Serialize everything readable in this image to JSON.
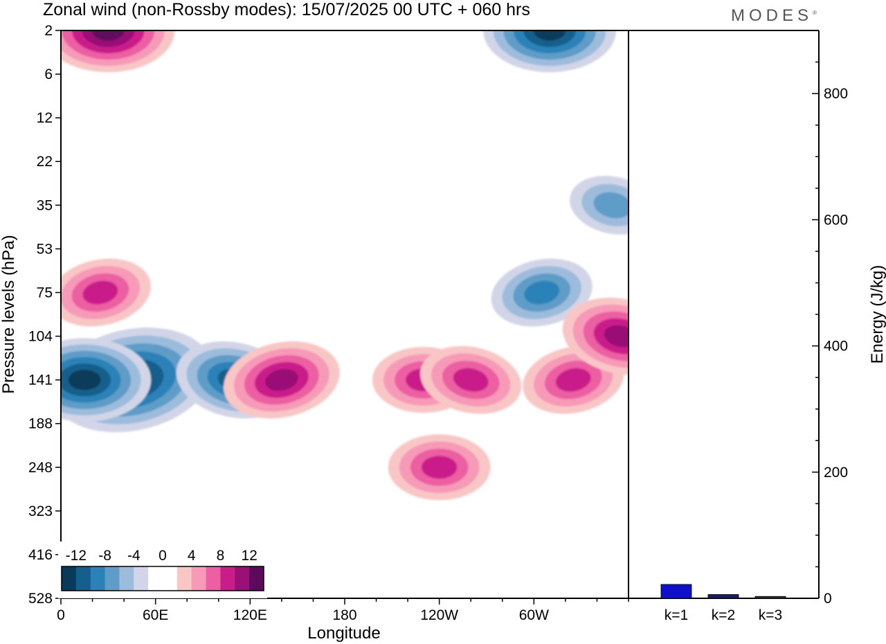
{
  "header": {
    "title": "Zonal wind (non-Rossby modes):  15/07/2025  00 UTC  + 060 hrs",
    "brand": "MODES"
  },
  "chart_data": [
    {
      "type": "heatmap",
      "title": "Zonal wind (non-Rossby modes):  15/07/2025  00 UTC  + 060 hrs",
      "xlabel": "Longitude",
      "ylabel": "Pressure levels (hPa)",
      "x_ticks": [
        "0",
        "60E",
        "120E",
        "180",
        "120W",
        "60W"
      ],
      "x_tick_values": [
        0,
        60,
        120,
        180,
        240,
        300
      ],
      "xlim": [
        0,
        360
      ],
      "y_ticks": [
        "2",
        "6",
        "12",
        "22",
        "35",
        "53",
        "75",
        "104",
        "141",
        "188",
        "248",
        "323",
        "416",
        "528"
      ],
      "y_scale": "model levels (top to bottom)",
      "colorbar": {
        "labels": [
          "-12",
          "-8",
          "-4",
          "0",
          "4",
          "8",
          "12"
        ],
        "colors": [
          "#0a3a5a",
          "#155f8c",
          "#2a82b8",
          "#5f9cc8",
          "#9dbcdc",
          "#d2d5e8",
          "#ffffff",
          "#ffffff",
          "#f9c6c6",
          "#f79ab8",
          "#ec5fa2",
          "#c91e8a",
          "#9a1077",
          "#5e0a5c"
        ],
        "placement": "bottom-left inside plot"
      },
      "features": [
        {
          "lon": 45,
          "level": "141",
          "value": -16,
          "sign": "negative"
        },
        {
          "lon": 15,
          "level": "141",
          "value": -12,
          "sign": "negative"
        },
        {
          "lon": 110,
          "level": "141",
          "value": -10,
          "sign": "negative"
        },
        {
          "lon": 305,
          "level": "75",
          "value": -8,
          "sign": "negative"
        },
        {
          "lon": 310,
          "level": "2",
          "value": -12,
          "sign": "negative"
        },
        {
          "lon": 350,
          "level": "35",
          "value": -6,
          "sign": "negative"
        },
        {
          "lon": 140,
          "level": "141",
          "value": 10,
          "sign": "positive"
        },
        {
          "lon": 230,
          "level": "141",
          "value": 8,
          "sign": "positive"
        },
        {
          "lon": 260,
          "level": "141",
          "value": 8,
          "sign": "positive"
        },
        {
          "lon": 325,
          "level": "141",
          "value": 8,
          "sign": "positive"
        },
        {
          "lon": 240,
          "level": "248",
          "value": 8,
          "sign": "positive"
        },
        {
          "lon": 355,
          "level": "104",
          "value": 10,
          "sign": "positive"
        },
        {
          "lon": 25,
          "level": "75",
          "value": 8,
          "sign": "positive"
        },
        {
          "lon": 30,
          "level": "2",
          "value": 12,
          "sign": "positive"
        }
      ]
    },
    {
      "type": "bar",
      "categories": [
        "k=1",
        "k=2",
        "k=3"
      ],
      "values": [
        22,
        6,
        3
      ],
      "ylabel": "Energy (J/kg)",
      "y_ticks": [
        "0",
        "200",
        "400",
        "600",
        "800"
      ],
      "ylim": [
        0,
        900
      ],
      "colors": [
        "#1010cc",
        "#1a1a66",
        "#333333"
      ]
    }
  ]
}
